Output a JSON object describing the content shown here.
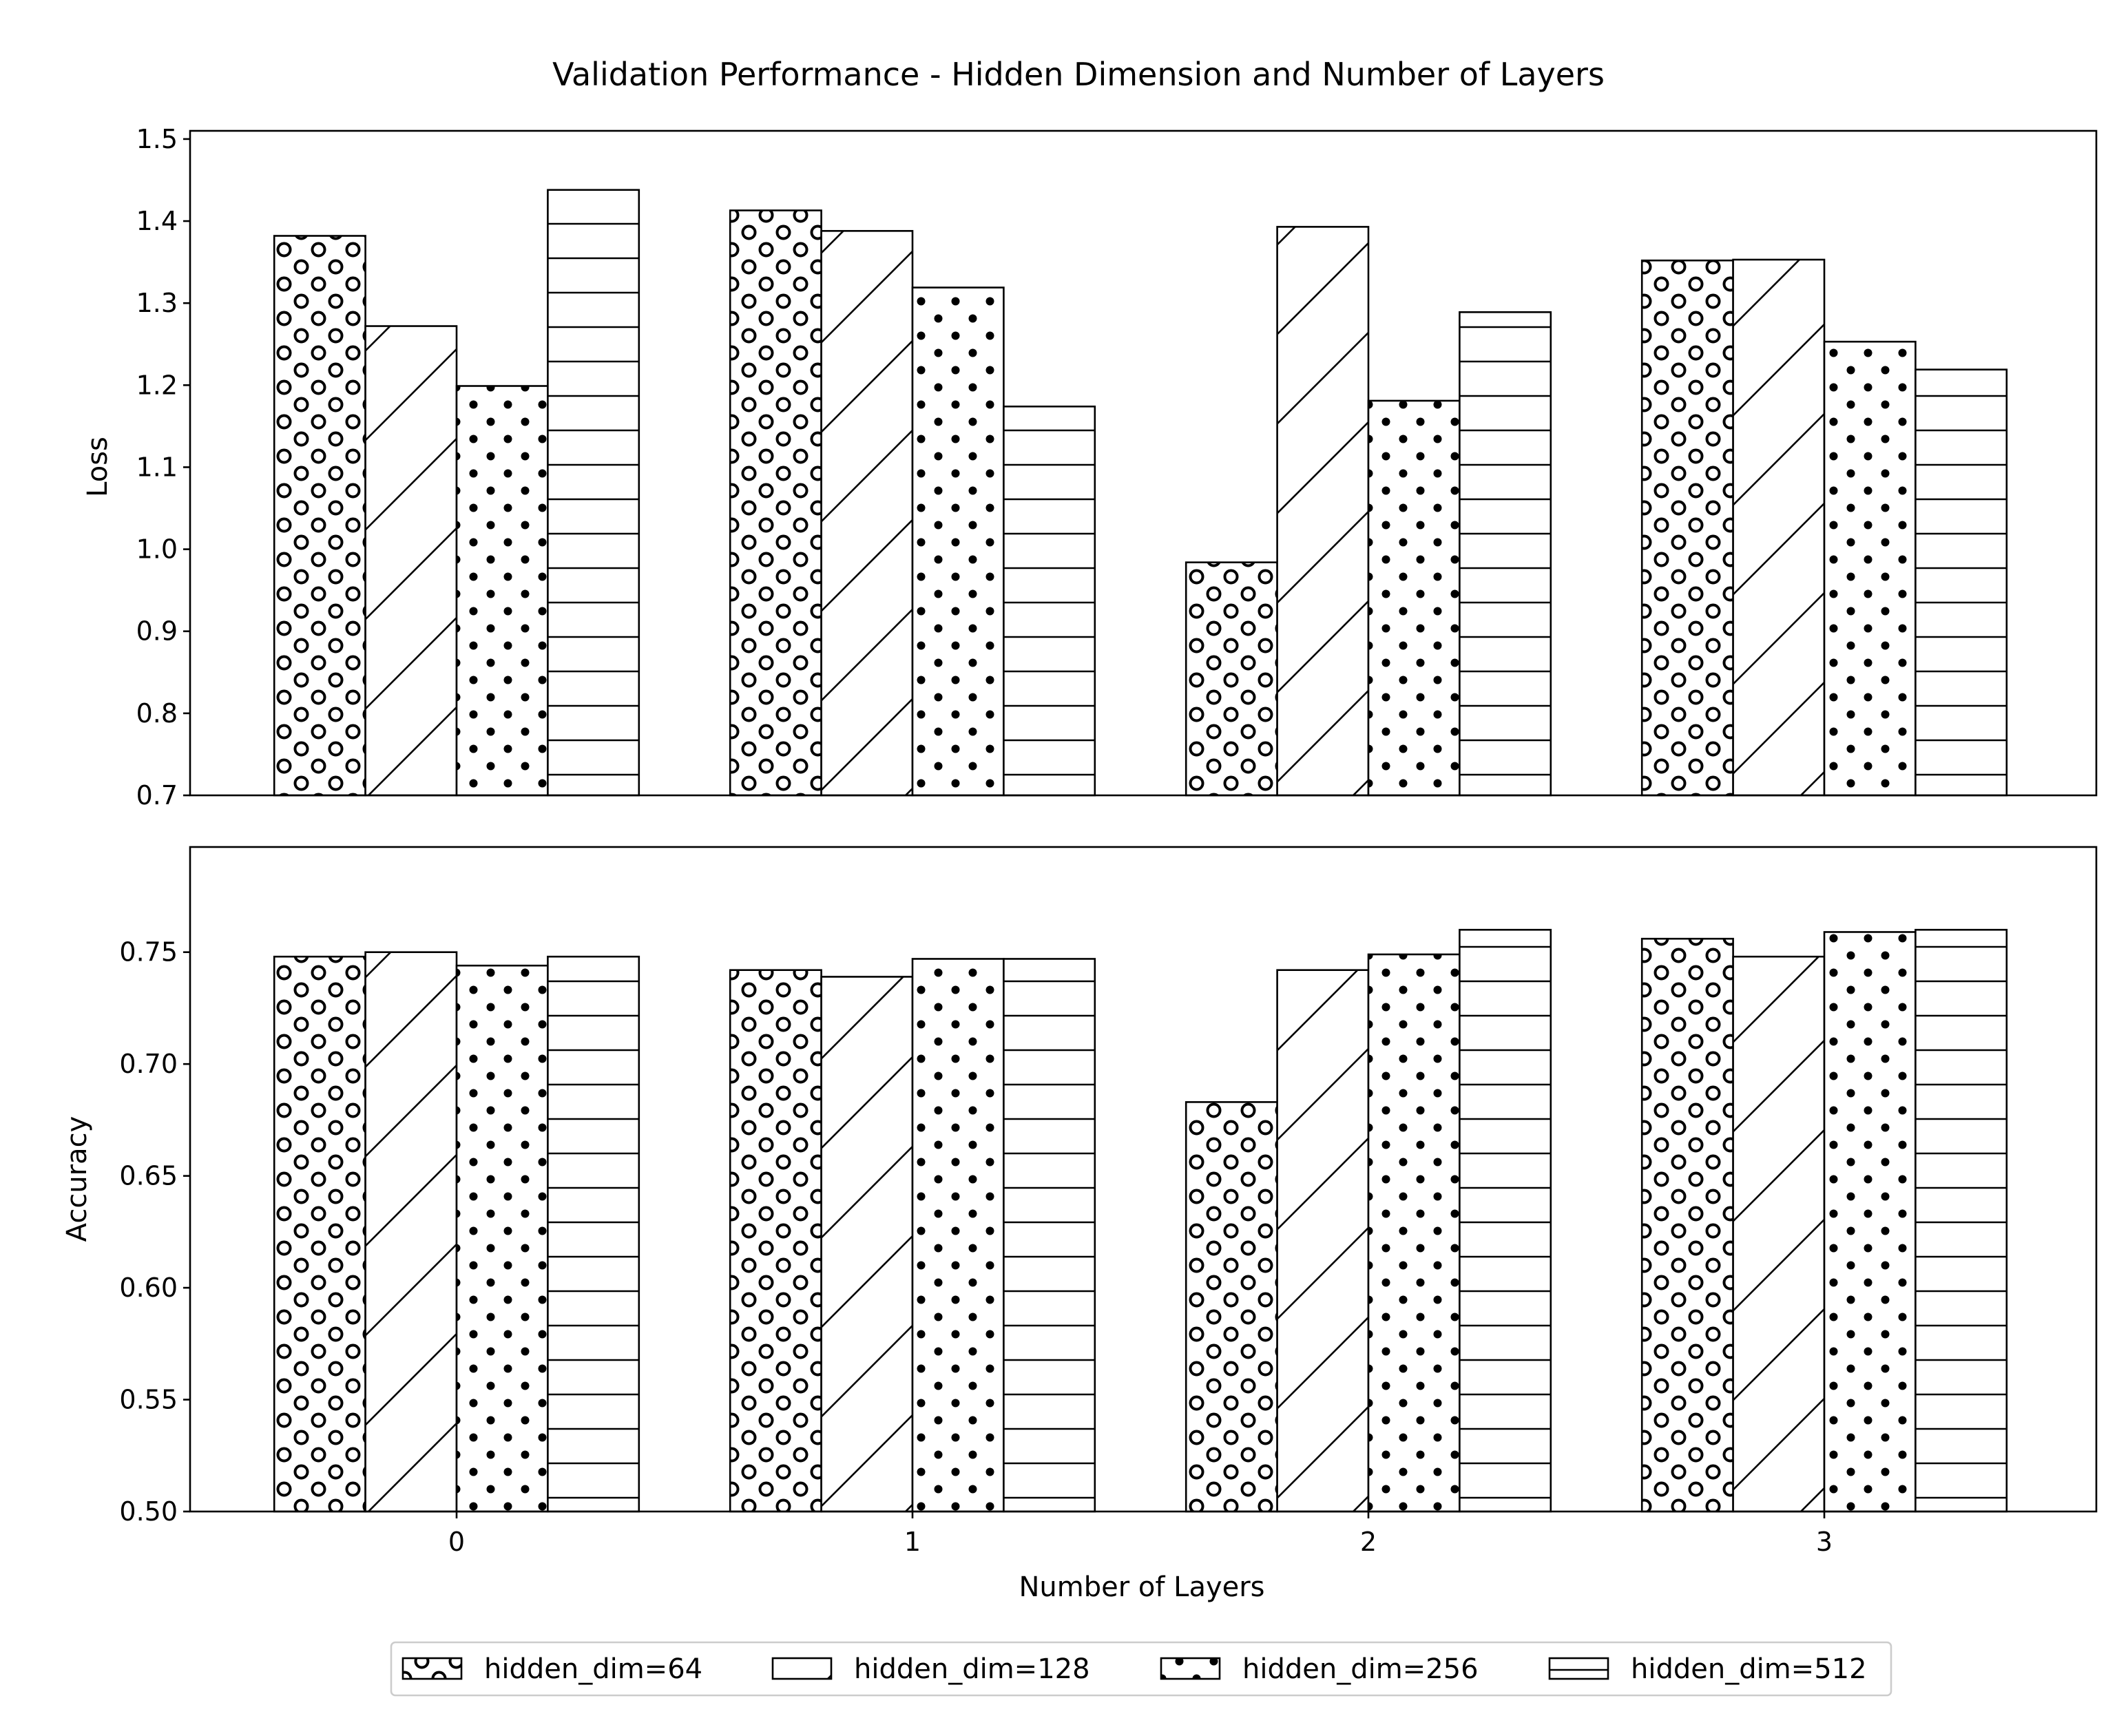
{
  "chart_data": {
    "title": "Validation Performance - Hidden Dimension and Number of Layers",
    "type": "bar",
    "xlabel": "Number of Layers",
    "categories": [
      "0",
      "1",
      "2",
      "3"
    ],
    "series_names": [
      "hidden_dim=64",
      "hidden_dim=128",
      "hidden_dim=256",
      "hidden_dim=512"
    ],
    "series_patterns": [
      "circles",
      "diagonal",
      "dots",
      "horizontal"
    ],
    "legend_position": "bottom-center",
    "bar_fill_color": "#ffffff",
    "edge_color": "#000000",
    "grid": false,
    "panels": [
      {
        "ylabel": "Loss",
        "ylim": [
          0.7,
          1.51
        ],
        "yticks": [
          "0.7",
          "0.8",
          "0.9",
          "1.0",
          "1.1",
          "1.2",
          "1.3",
          "1.4",
          "1.5"
        ],
        "series": [
          {
            "values": [
              1.382,
              1.413,
              0.984,
              1.352
            ]
          },
          {
            "values": [
              1.272,
              1.388,
              1.393,
              1.353
            ]
          },
          {
            "values": [
              1.199,
              1.319,
              1.181,
              1.253
            ]
          },
          {
            "values": [
              1.438,
              1.174,
              1.289,
              1.219
            ]
          }
        ]
      },
      {
        "ylabel": "Accuracy",
        "ylim": [
          0.5,
          0.797
        ],
        "yticks": [
          "0.50",
          "0.55",
          "0.60",
          "0.65",
          "0.70",
          "0.75"
        ],
        "series": [
          {
            "values": [
              0.748,
              0.742,
              0.683,
              0.756
            ]
          },
          {
            "values": [
              0.75,
              0.739,
              0.742,
              0.748
            ]
          },
          {
            "values": [
              0.744,
              0.747,
              0.749,
              0.759
            ]
          },
          {
            "values": [
              0.748,
              0.747,
              0.76,
              0.76
            ]
          }
        ]
      }
    ]
  }
}
